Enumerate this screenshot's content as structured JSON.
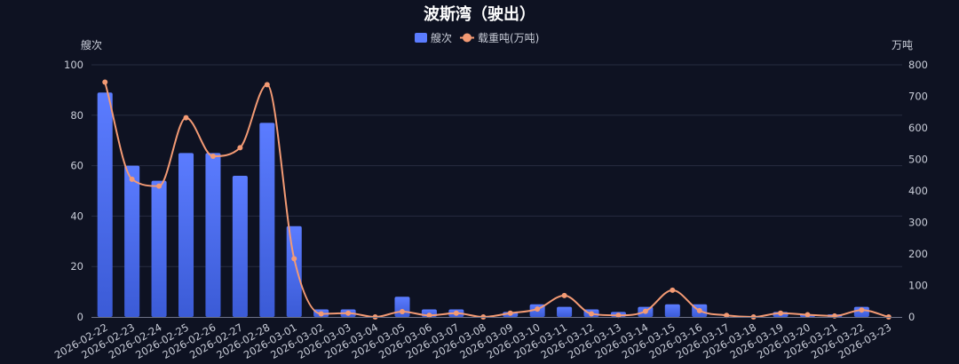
{
  "chart_data": {
    "type": "bar",
    "title": "波斯湾（驶出）",
    "left_axis_unit": "艘次",
    "right_axis_unit": "万吨",
    "categories": [
      "2026-02-22",
      "2026-02-23",
      "2026-02-24",
      "2026-02-25",
      "2026-02-26",
      "2026-02-27",
      "2026-02-28",
      "2026-03-01",
      "2026-03-02",
      "2026-03-03",
      "2026-03-04",
      "2026-03-05",
      "2026-03-06",
      "2026-03-07",
      "2026-03-08",
      "2026-03-09",
      "2026-03-10",
      "2026-03-11",
      "2026-03-12",
      "2026-03-13",
      "2026-03-14",
      "2026-03-15",
      "2026-03-16",
      "2026-03-17",
      "2026-03-18",
      "2026-03-19",
      "2026-03-20",
      "2026-03-21",
      "2026-03-22",
      "2026-03-23"
    ],
    "series": [
      {
        "name": "艘次",
        "type": "bar",
        "axis": "left",
        "values": [
          89,
          60,
          54,
          65,
          65,
          56,
          77,
          36,
          3,
          3,
          0,
          8,
          3,
          3,
          0,
          2,
          5,
          4,
          3,
          2,
          4,
          5,
          5,
          0,
          0,
          2,
          1,
          1,
          4,
          0
        ]
      },
      {
        "name": "载重吨(万吨)",
        "type": "line",
        "smooth": true,
        "axis": "right",
        "values": [
          745,
          437,
          415,
          632,
          510,
          537,
          737,
          185,
          10,
          12,
          0,
          17,
          5,
          12,
          0,
          12,
          25,
          68,
          10,
          5,
          18,
          85,
          20,
          5,
          0,
          12,
          7,
          3,
          22,
          0
        ]
      }
    ],
    "left_ylim": [
      0,
      100
    ],
    "left_yticks": [
      0,
      20,
      40,
      60,
      80,
      100
    ],
    "right_ylim": [
      0,
      800
    ],
    "right_yticks": [
      0,
      100,
      200,
      300,
      400,
      500,
      600,
      700,
      800
    ],
    "grid": true,
    "legend_position": "top-center",
    "colors": {
      "background": "#0e1222",
      "bar_top": "#5b7cff",
      "bar_bottom": "#3b5bd6",
      "line": "#f39a74",
      "grid": "#272c40"
    }
  }
}
